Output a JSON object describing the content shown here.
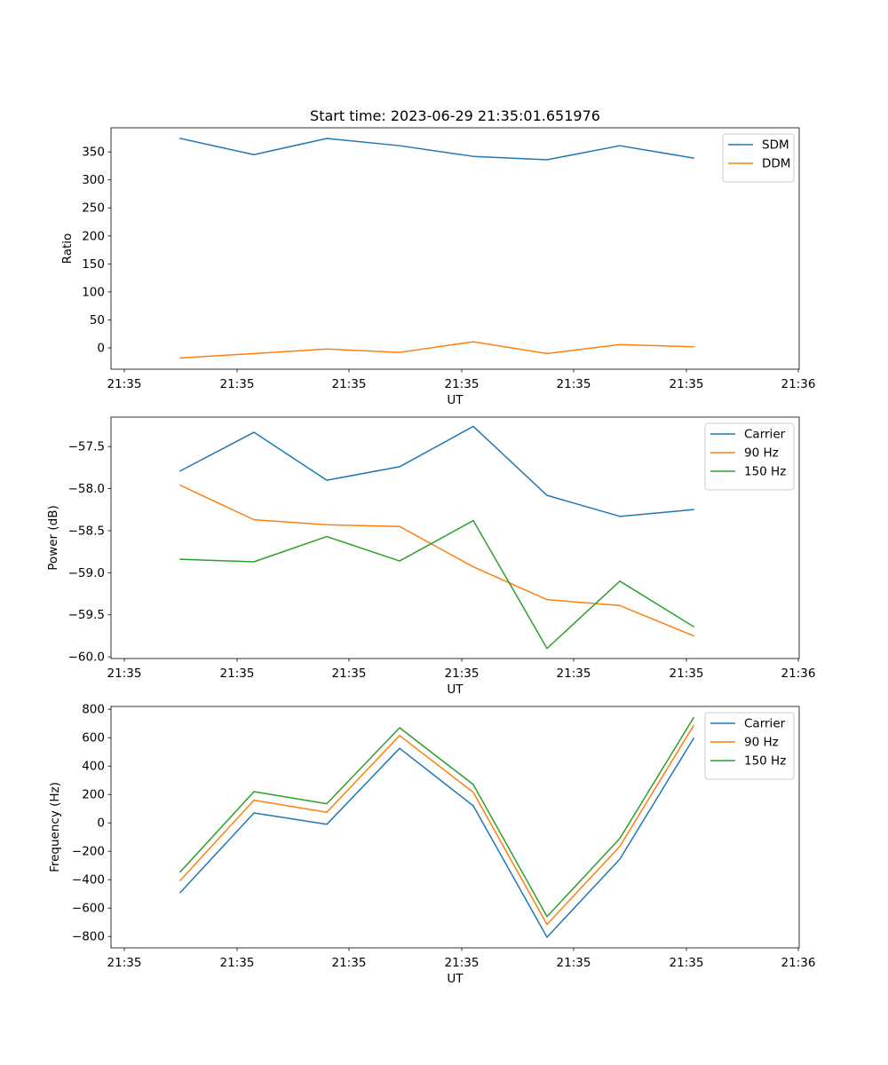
{
  "title": "Start time: 2023-06-29 21:35:01.651976",
  "colors": {
    "blue": "#1f77b4",
    "orange": "#ff7f0e",
    "green": "#2ca02c"
  },
  "chart_data": [
    {
      "type": "line",
      "title": "Start time: 2023-06-29 21:35:01.651976",
      "xlabel": "UT",
      "ylabel": "Ratio",
      "x_tick_labels": [
        "21:35",
        "21:35",
        "21:35",
        "21:35",
        "21:35",
        "21:35",
        "21:36"
      ],
      "y_ticks": [
        0,
        50,
        100,
        150,
        200,
        250,
        300,
        350
      ],
      "y_tick_labels": [
        "0",
        "50",
        "100",
        "150",
        "200",
        "250",
        "300",
        "350"
      ],
      "ylim": [
        -38,
        393
      ],
      "legend_position": "top-right",
      "grid": false,
      "series": [
        {
          "name": "SDM",
          "color": "#1f77b4",
          "values": [
            374,
            345,
            374,
            361,
            342,
            336,
            361,
            339
          ]
        },
        {
          "name": "DDM",
          "color": "#ff7f0e",
          "values": [
            -18,
            -10,
            -2,
            -8,
            11,
            -10,
            6,
            2
          ]
        }
      ]
    },
    {
      "type": "line",
      "title": "",
      "xlabel": "UT",
      "ylabel": "Power (dB)",
      "x_tick_labels": [
        "21:35",
        "21:35",
        "21:35",
        "21:35",
        "21:35",
        "21:35",
        "21:36"
      ],
      "y_ticks": [
        -57.5,
        -58.0,
        -58.5,
        -59.0,
        -59.5,
        -60.0
      ],
      "y_tick_labels": [
        "−57.5",
        "−58.0",
        "−58.5",
        "−59.0",
        "−59.5",
        "−60.0"
      ],
      "ylim": [
        -60.02,
        -57.15
      ],
      "legend_position": "top-right",
      "grid": false,
      "series": [
        {
          "name": "Carrier",
          "color": "#1f77b4",
          "values": [
            -57.79,
            -57.33,
            -57.9,
            -57.74,
            -57.26,
            -58.08,
            -58.33,
            -58.25
          ]
        },
        {
          "name": "90 Hz",
          "color": "#ff7f0e",
          "values": [
            -57.96,
            -58.37,
            -58.43,
            -58.45,
            -58.93,
            -59.32,
            -59.39,
            -59.75
          ]
        },
        {
          "name": "150 Hz",
          "color": "#2ca02c",
          "values": [
            -58.84,
            -58.87,
            -58.57,
            -58.86,
            -58.38,
            -59.9,
            -59.1,
            -59.64
          ]
        }
      ]
    },
    {
      "type": "line",
      "title": "",
      "xlabel": "UT",
      "ylabel": "Frequency (Hz)",
      "x_tick_labels": [
        "21:35",
        "21:35",
        "21:35",
        "21:35",
        "21:35",
        "21:35",
        "21:36"
      ],
      "y_ticks": [
        800,
        600,
        400,
        200,
        0,
        -200,
        -400,
        -600,
        -800
      ],
      "y_tick_labels": [
        "800",
        "600",
        "400",
        "200",
        "0",
        "−200",
        "−400",
        "−600",
        "−800"
      ],
      "ylim": [
        -880,
        820
      ],
      "legend_position": "top-right",
      "grid": false,
      "series": [
        {
          "name": "Carrier",
          "color": "#1f77b4",
          "values": [
            -490,
            70,
            -10,
            525,
            120,
            -805,
            -255,
            595
          ]
        },
        {
          "name": "90 Hz",
          "color": "#ff7f0e",
          "values": [
            -405,
            160,
            75,
            615,
            215,
            -715,
            -165,
            685
          ]
        },
        {
          "name": "150 Hz",
          "color": "#2ca02c",
          "values": [
            -345,
            220,
            135,
            670,
            270,
            -660,
            -110,
            740
          ]
        }
      ]
    }
  ]
}
